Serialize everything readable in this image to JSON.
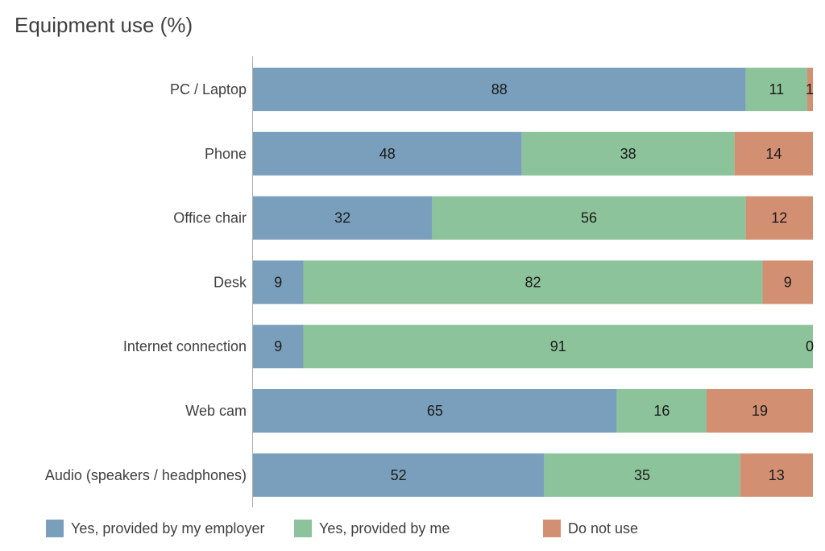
{
  "chart_data": {
    "type": "bar",
    "orientation": "horizontal",
    "stacked": true,
    "title": "Equipment use (%)",
    "xlabel": "",
    "ylabel": "",
    "xlim": [
      0,
      100
    ],
    "grid": false,
    "legend_position": "bottom",
    "categories": [
      "PC / Laptop",
      "Phone",
      "Office chair",
      "Desk",
      "Internet connection",
      "Web cam",
      "Audio (speakers / headphones)"
    ],
    "series": [
      {
        "name": "Yes, provided by my employer",
        "color": "#7a9fbc",
        "values": [
          88,
          48,
          32,
          9,
          9,
          65,
          52
        ]
      },
      {
        "name": "Yes, provided by me",
        "color": "#8cc39a",
        "values": [
          11,
          38,
          56,
          82,
          91,
          16,
          35
        ]
      },
      {
        "name": "Do not use",
        "color": "#d38f72",
        "values": [
          1,
          14,
          12,
          9,
          0,
          19,
          13
        ]
      }
    ]
  }
}
